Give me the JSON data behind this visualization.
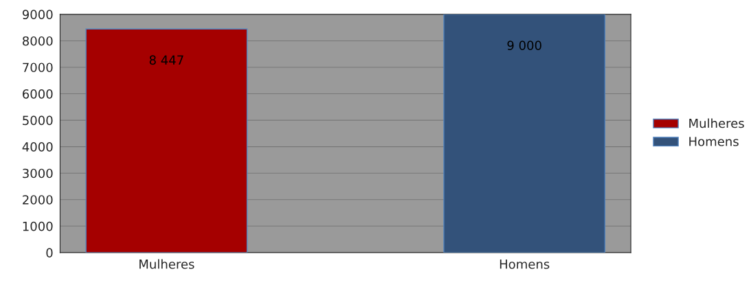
{
  "chart_data": {
    "type": "bar",
    "categories": [
      "Mulheres",
      "Homens"
    ],
    "series": [
      {
        "name": "Mulheres",
        "color": "#a50000",
        "values": [
          8447,
          null
        ],
        "value_labels": [
          "8 447",
          null
        ]
      },
      {
        "name": "Homens",
        "color": "#33527a",
        "values": [
          null,
          9000
        ],
        "value_labels": [
          null,
          "9 000"
        ]
      }
    ],
    "ylim": [
      0,
      9000
    ],
    "yticks": [
      0,
      1000,
      2000,
      3000,
      4000,
      5000,
      6000,
      7000,
      8000,
      9000
    ],
    "grid": "y",
    "legend": "right"
  }
}
